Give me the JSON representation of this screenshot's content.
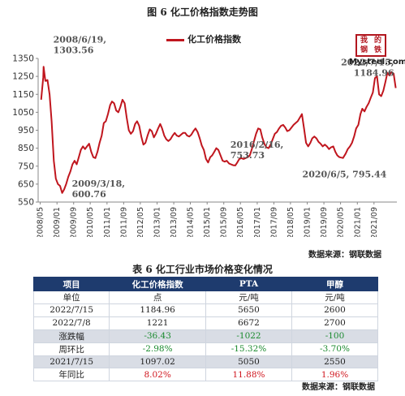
{
  "figure": {
    "title": "图 6 化工价格指数走势图",
    "legend_label": "化工价格指数",
    "source": "数据来源：钢联数据",
    "logo": {
      "chars": [
        "我",
        "的",
        "钢",
        "铁"
      ],
      "text": "Mysteel.com",
      "color": "#b2161f"
    }
  },
  "chart_data": {
    "type": "line",
    "series": [
      {
        "name": "化工价格指数",
        "color": "#c0161e",
        "points": [
          [
            "2008-05",
            1120
          ],
          [
            "2008-06",
            1245
          ],
          [
            "2008-06-19",
            1303.56
          ],
          [
            "2008-07",
            1225
          ],
          [
            "2008-08",
            1230
          ],
          [
            "2008-09",
            1150
          ],
          [
            "2008-10",
            1000
          ],
          [
            "2008-11",
            780
          ],
          [
            "2008-12",
            680
          ],
          [
            "2009-01",
            650
          ],
          [
            "2009-02",
            640
          ],
          [
            "2009-03-18",
            600.76
          ],
          [
            "2009-04",
            620
          ],
          [
            "2009-05",
            650
          ],
          [
            "2009-06",
            690
          ],
          [
            "2009-07",
            720
          ],
          [
            "2009-08",
            760
          ],
          [
            "2009-09",
            780
          ],
          [
            "2009-10",
            760
          ],
          [
            "2009-11",
            800
          ],
          [
            "2009-12",
            840
          ],
          [
            "2010-01",
            860
          ],
          [
            "2010-02",
            845
          ],
          [
            "2010-03",
            860
          ],
          [
            "2010-04",
            875
          ],
          [
            "2010-05",
            830
          ],
          [
            "2010-06",
            800
          ],
          [
            "2010-07",
            795
          ],
          [
            "2010-08",
            830
          ],
          [
            "2010-09",
            880
          ],
          [
            "2010-10",
            920
          ],
          [
            "2010-11",
            990
          ],
          [
            "2010-12",
            1000
          ],
          [
            "2011-01",
            1040
          ],
          [
            "2011-02",
            1090
          ],
          [
            "2011-03",
            1110
          ],
          [
            "2011-04",
            1100
          ],
          [
            "2011-05",
            1060
          ],
          [
            "2011-06",
            1050
          ],
          [
            "2011-07",
            1080
          ],
          [
            "2011-08",
            1120
          ],
          [
            "2011-09",
            1100
          ],
          [
            "2011-10",
            1020
          ],
          [
            "2011-11",
            950
          ],
          [
            "2011-12",
            930
          ],
          [
            "2012-01",
            945
          ],
          [
            "2012-02",
            985
          ],
          [
            "2012-03",
            1000
          ],
          [
            "2012-04",
            975
          ],
          [
            "2012-05",
            915
          ],
          [
            "2012-06",
            870
          ],
          [
            "2012-07",
            880
          ],
          [
            "2012-08",
            920
          ],
          [
            "2012-09",
            955
          ],
          [
            "2012-10",
            945
          ],
          [
            "2012-11",
            910
          ],
          [
            "2012-12",
            930
          ],
          [
            "2013-01",
            960
          ],
          [
            "2013-02",
            985
          ],
          [
            "2013-03",
            960
          ],
          [
            "2013-04",
            920
          ],
          [
            "2013-05",
            900
          ],
          [
            "2013-06",
            890
          ],
          [
            "2013-07",
            900
          ],
          [
            "2013-08",
            920
          ],
          [
            "2013-09",
            935
          ],
          [
            "2013-10",
            920
          ],
          [
            "2013-11",
            915
          ],
          [
            "2013-12",
            925
          ],
          [
            "2014-01",
            935
          ],
          [
            "2014-02",
            935
          ],
          [
            "2014-03",
            920
          ],
          [
            "2014-04",
            915
          ],
          [
            "2014-05",
            925
          ],
          [
            "2014-06",
            945
          ],
          [
            "2014-07",
            960
          ],
          [
            "2014-08",
            940
          ],
          [
            "2014-09",
            905
          ],
          [
            "2014-10",
            865
          ],
          [
            "2014-11",
            840
          ],
          [
            "2014-12",
            790
          ],
          [
            "2015-01",
            770
          ],
          [
            "2015-02",
            800
          ],
          [
            "2015-03",
            810
          ],
          [
            "2015-04",
            830
          ],
          [
            "2015-05",
            850
          ],
          [
            "2015-06",
            840
          ],
          [
            "2015-07",
            810
          ],
          [
            "2015-08",
            780
          ],
          [
            "2015-09",
            775
          ],
          [
            "2015-10",
            780
          ],
          [
            "2015-11",
            765
          ],
          [
            "2015-12",
            760
          ],
          [
            "2016-01",
            755
          ],
          [
            "2016-02-16",
            753.73
          ],
          [
            "2016-03",
            770
          ],
          [
            "2016-04",
            790
          ],
          [
            "2016-05",
            795
          ],
          [
            "2016-06",
            790
          ],
          [
            "2016-07",
            795
          ],
          [
            "2016-08",
            800
          ],
          [
            "2016-09",
            810
          ],
          [
            "2016-10",
            845
          ],
          [
            "2016-11",
            890
          ],
          [
            "2016-12",
            930
          ],
          [
            "2017-01",
            960
          ],
          [
            "2017-02",
            955
          ],
          [
            "2017-03",
            910
          ],
          [
            "2017-04",
            875
          ],
          [
            "2017-05",
            855
          ],
          [
            "2017-06",
            850
          ],
          [
            "2017-07",
            870
          ],
          [
            "2017-08",
            900
          ],
          [
            "2017-09",
            930
          ],
          [
            "2017-10",
            940
          ],
          [
            "2017-11",
            960
          ],
          [
            "2017-12",
            975
          ],
          [
            "2018-01",
            980
          ],
          [
            "2018-02",
            965
          ],
          [
            "2018-03",
            945
          ],
          [
            "2018-04",
            950
          ],
          [
            "2018-05",
            965
          ],
          [
            "2018-06",
            980
          ],
          [
            "2018-07",
            990
          ],
          [
            "2018-08",
            1000
          ],
          [
            "2018-09",
            1020
          ],
          [
            "2018-10",
            1040
          ],
          [
            "2018-11",
            960
          ],
          [
            "2018-12",
            880
          ],
          [
            "2019-01",
            860
          ],
          [
            "2019-02",
            880
          ],
          [
            "2019-03",
            905
          ],
          [
            "2019-04",
            915
          ],
          [
            "2019-05",
            905
          ],
          [
            "2019-06",
            885
          ],
          [
            "2019-07",
            875
          ],
          [
            "2019-08",
            860
          ],
          [
            "2019-09",
            870
          ],
          [
            "2019-10",
            860
          ],
          [
            "2019-11",
            845
          ],
          [
            "2019-12",
            855
          ],
          [
            "2020-01",
            860
          ],
          [
            "2020-02",
            830
          ],
          [
            "2020-03",
            810
          ],
          [
            "2020-04",
            800
          ],
          [
            "2020-06-05",
            795.44
          ],
          [
            "2020-07",
            820
          ],
          [
            "2020-08",
            845
          ],
          [
            "2020-09",
            860
          ],
          [
            "2020-10",
            880
          ],
          [
            "2020-11",
            915
          ],
          [
            "2020-12",
            960
          ],
          [
            "2021-01",
            980
          ],
          [
            "2021-02",
            1040
          ],
          [
            "2021-03",
            1070
          ],
          [
            "2021-04",
            1055
          ],
          [
            "2021-05",
            1080
          ],
          [
            "2021-06",
            1100
          ],
          [
            "2021-07",
            1130
          ],
          [
            "2021-08",
            1160
          ],
          [
            "2021-09",
            1240
          ],
          [
            "2021-10",
            1250
          ],
          [
            "2021-11",
            1150
          ],
          [
            "2021-12",
            1140
          ],
          [
            "2022-01",
            1170
          ],
          [
            "2022-02",
            1220
          ],
          [
            "2022-03",
            1270
          ],
          [
            "2022-04",
            1255
          ],
          [
            "2022-05",
            1275
          ],
          [
            "2022-06",
            1265
          ],
          [
            "2022-07-15",
            1184.96
          ]
        ]
      }
    ],
    "x_range": [
      "2008-04-01",
      "2022-08-01"
    ],
    "x_ticks": [
      "2008/05",
      "2009/01",
      "2009/09",
      "2010/05",
      "2011/01",
      "2011/09",
      "2012/05",
      "2013/01",
      "2013/09",
      "2014/05",
      "2015/01",
      "2015/09",
      "2016/05",
      "2017/01",
      "2017/09",
      "2018/05",
      "2019/01",
      "2019/09",
      "2020/05",
      "2021/01",
      "2021/09"
    ],
    "y_ticks": [
      550,
      650,
      750,
      850,
      950,
      1050,
      1150,
      1250,
      1350
    ],
    "ylim": [
      550,
      1350
    ],
    "grid": false,
    "legend_position": "top-center",
    "annotations": [
      {
        "date": "2008-06-19",
        "value": 1303.56,
        "lines": [
          "2008/6/19,",
          "1303.56"
        ]
      },
      {
        "date": "2009-03-18",
        "value": 600.76,
        "lines": [
          "2009/3/18,",
          "600.76"
        ]
      },
      {
        "date": "2016-02-16",
        "value": 753.73,
        "lines": [
          "2016/2/16,",
          "753.73"
        ]
      },
      {
        "date": "2020-06-05",
        "value": 795.44,
        "lines": [
          "2020/6/5, 795.44"
        ]
      },
      {
        "date": "2022-07-15",
        "value": 1184.96,
        "lines": [
          "2022/7/15,",
          "1184.96"
        ]
      }
    ]
  },
  "table": {
    "title": "表 6 化工行业市场价格变化情况",
    "headers": [
      "项目",
      "化工价格指数",
      "PTA",
      "甲醇"
    ],
    "rows": [
      {
        "cells": [
          "单位",
          "点",
          "元/吨",
          "元/吨"
        ],
        "shaded": false,
        "tone": ""
      },
      {
        "cells": [
          "2022/7/15",
          "1184.96",
          "5650",
          "2600"
        ],
        "shaded": false,
        "tone": ""
      },
      {
        "cells": [
          "2022/7/8",
          "1221",
          "6672",
          "2700"
        ],
        "shaded": false,
        "tone": ""
      },
      {
        "cells": [
          "涨跌幅",
          "-36.43",
          "-1022",
          "-100"
        ],
        "shaded": true,
        "tone": "green"
      },
      {
        "cells": [
          "周环比",
          "-2.98%",
          "-15.32%",
          "-3.70%"
        ],
        "shaded": false,
        "tone": "green"
      },
      {
        "cells": [
          "2021/7/15",
          "1097.02",
          "5050",
          "2550"
        ],
        "shaded": true,
        "tone": ""
      },
      {
        "cells": [
          "年同比",
          "8.02%",
          "11.88%",
          "1.96%"
        ],
        "shaded": false,
        "tone": "red"
      }
    ],
    "source": "数据来源：钢联数据"
  }
}
